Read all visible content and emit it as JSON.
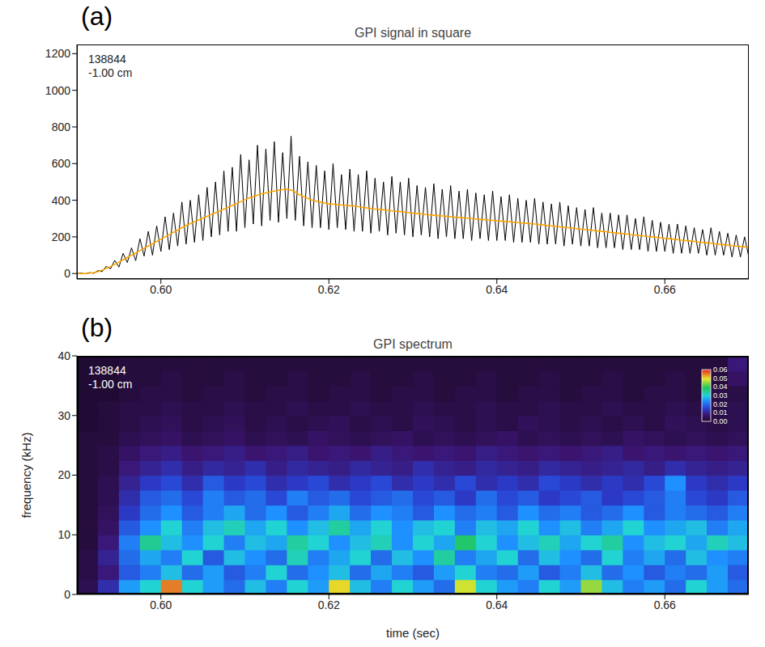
{
  "chart_data": [
    {
      "type": "line",
      "panel": "(a)",
      "title": "GPI signal in square",
      "annotations": [
        "138844",
        "-1.00 cm"
      ],
      "x": [
        0.59,
        0.5905,
        0.591,
        0.5915,
        0.592,
        0.5925,
        0.593,
        0.5935,
        0.594,
        0.5945,
        0.595,
        0.5955,
        0.596,
        0.5965,
        0.597,
        0.5975,
        0.598,
        0.5985,
        0.599,
        0.5995,
        0.6,
        0.6005,
        0.601,
        0.6015,
        0.602,
        0.6025,
        0.603,
        0.6035,
        0.604,
        0.6045,
        0.605,
        0.6055,
        0.606,
        0.6065,
        0.607,
        0.6075,
        0.608,
        0.6085,
        0.609,
        0.6095,
        0.61,
        0.6105,
        0.611,
        0.6115,
        0.612,
        0.6125,
        0.613,
        0.6135,
        0.614,
        0.6145,
        0.615,
        0.6155,
        0.616,
        0.6165,
        0.617,
        0.6175,
        0.618,
        0.6185,
        0.619,
        0.6195,
        0.62,
        0.6205,
        0.621,
        0.6215,
        0.622,
        0.6225,
        0.623,
        0.6235,
        0.624,
        0.6245,
        0.625,
        0.6255,
        0.626,
        0.6265,
        0.627,
        0.6275,
        0.628,
        0.6285,
        0.629,
        0.6295,
        0.63,
        0.6305,
        0.631,
        0.6315,
        0.632,
        0.6325,
        0.633,
        0.6335,
        0.634,
        0.6345,
        0.635,
        0.6355,
        0.636,
        0.6365,
        0.637,
        0.6375,
        0.638,
        0.6385,
        0.639,
        0.6395,
        0.64,
        0.6405,
        0.641,
        0.6415,
        0.642,
        0.6425,
        0.643,
        0.6435,
        0.644,
        0.6445,
        0.645,
        0.6455,
        0.646,
        0.6465,
        0.647,
        0.6475,
        0.648,
        0.6485,
        0.649,
        0.6495,
        0.65,
        0.6505,
        0.651,
        0.6515,
        0.652,
        0.6525,
        0.653,
        0.6535,
        0.654,
        0.6545,
        0.655,
        0.6555,
        0.656,
        0.6565,
        0.657,
        0.6575,
        0.658,
        0.6585,
        0.659,
        0.6595,
        0.66,
        0.6605,
        0.661,
        0.6615,
        0.662,
        0.6625,
        0.663,
        0.6635,
        0.664,
        0.6645,
        0.665,
        0.6655,
        0.666,
        0.6665,
        0.667,
        0.6675,
        0.668,
        0.6685,
        0.669,
        0.6695,
        0.67
      ],
      "series": [
        {
          "color": "#000000",
          "values": [
            0,
            2,
            -2,
            5,
            1,
            16,
            10,
            40,
            25,
            72,
            35,
            110,
            60,
            140,
            70,
            190,
            95,
            230,
            100,
            260,
            120,
            310,
            130,
            330,
            150,
            390,
            160,
            400,
            170,
            430,
            180,
            470,
            200,
            500,
            210,
            560,
            230,
            580,
            230,
            650,
            250,
            620,
            270,
            700,
            260,
            680,
            290,
            720,
            280,
            660,
            300,
            750,
            290,
            640,
            260,
            610,
            250,
            590,
            250,
            560,
            240,
            600,
            250,
            540,
            240,
            570,
            230,
            540,
            230,
            560,
            220,
            520,
            230,
            500,
            210,
            530,
            220,
            500,
            210,
            520,
            200,
            480,
            210,
            470,
            200,
            490,
            190,
            460,
            200,
            480,
            190,
            450,
            190,
            460,
            180,
            440,
            190,
            430,
            180,
            450,
            180,
            420,
            180,
            430,
            170,
            410,
            170,
            400,
            170,
            410,
            160,
            390,
            160,
            380,
            160,
            390,
            150,
            370,
            160,
            360,
            150,
            350,
            150,
            360,
            140,
            330,
            140,
            330,
            140,
            320,
            130,
            320,
            130,
            300,
            130,
            310,
            120,
            290,
            120,
            280,
            120,
            270,
            110,
            270,
            110,
            260,
            110,
            250,
            110,
            240,
            100,
            250,
            100,
            230,
            100,
            220,
            90,
            210,
            90,
            200,
            90
          ]
        },
        {
          "color": "#ffa500",
          "values": [
            0,
            0,
            0,
            2,
            5,
            10,
            18,
            28,
            38,
            50,
            62,
            75,
            88,
            100,
            112,
            125,
            138,
            150,
            162,
            175,
            188,
            200,
            212,
            225,
            237,
            250,
            262,
            272,
            282,
            292,
            302,
            312,
            322,
            332,
            342,
            352,
            362,
            372,
            382,
            392,
            402,
            412,
            420,
            428,
            435,
            440,
            445,
            450,
            455,
            458,
            460,
            455,
            445,
            430,
            420,
            410,
            400,
            395,
            390,
            385,
            380,
            378,
            376,
            374,
            372,
            370,
            368,
            365,
            362,
            358,
            355,
            352,
            350,
            348,
            345,
            342,
            340,
            338,
            335,
            333,
            330,
            328,
            325,
            322,
            320,
            318,
            316,
            314,
            312,
            310,
            308,
            306,
            304,
            302,
            300,
            298,
            296,
            294,
            292,
            290,
            288,
            286,
            284,
            282,
            280,
            278,
            276,
            274,
            272,
            270,
            268,
            265,
            262,
            260,
            258,
            255,
            252,
            250,
            248,
            245,
            242,
            240,
            238,
            235,
            232,
            230,
            228,
            225,
            222,
            220,
            218,
            215,
            212,
            210,
            208,
            205,
            202,
            200,
            198,
            195,
            192,
            190,
            188,
            185,
            182,
            180,
            178,
            175,
            172,
            170,
            168,
            165,
            162,
            160,
            158,
            155,
            152,
            150,
            148,
            145,
            142
          ]
        }
      ],
      "xlim": [
        0.59,
        0.67
      ],
      "xticks": [
        {
          "value": 0.6,
          "label": "0.60"
        },
        {
          "value": 0.62,
          "label": "0.62"
        },
        {
          "value": 0.64,
          "label": "0.64"
        },
        {
          "value": 0.66,
          "label": "0.66"
        }
      ],
      "ylim": [
        -30,
        1250
      ],
      "yticks": [
        0,
        200,
        400,
        600,
        800,
        1000,
        1200
      ]
    },
    {
      "type": "heatmap",
      "panel": "(b)",
      "title": "GPI spectrum",
      "annotations": [
        "138844",
        "-1.00 cm"
      ],
      "x_label": "time (sec)",
      "y_label": "frequency (kHz)",
      "x": [
        0.59125,
        0.59375,
        0.59625,
        0.59875,
        0.60125,
        0.60375,
        0.60625,
        0.60875,
        0.61125,
        0.61375,
        0.61625,
        0.61875,
        0.62125,
        0.62375,
        0.62625,
        0.62875,
        0.63125,
        0.63375,
        0.63625,
        0.63875,
        0.64125,
        0.64375,
        0.64625,
        0.64875,
        0.65125,
        0.65375,
        0.65625,
        0.65875,
        0.66125,
        0.66375,
        0.66625,
        0.66875
      ],
      "y": [
        1.25,
        3.75,
        6.25,
        8.75,
        11.25,
        13.75,
        16.25,
        18.75,
        21.25,
        23.75,
        26.25,
        28.75,
        31.25,
        33.75,
        36.25,
        38.75
      ],
      "cells": [
        [
          0.004,
          0.012,
          0.025,
          0.03,
          0.055,
          0.03,
          0.025,
          0.02,
          0.028,
          0.022,
          0.03,
          0.025,
          0.05,
          0.028,
          0.022,
          0.03,
          0.025,
          0.02,
          0.048,
          0.03,
          0.025,
          0.022,
          0.03,
          0.025,
          0.045,
          0.028,
          0.022,
          0.025,
          0.02,
          0.03,
          0.025,
          0.02
        ],
        [
          0.003,
          0.008,
          0.018,
          0.022,
          0.028,
          0.02,
          0.025,
          0.018,
          0.022,
          0.03,
          0.02,
          0.024,
          0.028,
          0.02,
          0.026,
          0.022,
          0.018,
          0.025,
          0.03,
          0.022,
          0.02,
          0.025,
          0.018,
          0.022,
          0.028,
          0.02,
          0.024,
          0.018,
          0.022,
          0.02,
          0.025,
          0.018
        ],
        [
          0.003,
          0.01,
          0.02,
          0.026,
          0.022,
          0.03,
          0.018,
          0.028,
          0.024,
          0.02,
          0.032,
          0.022,
          0.026,
          0.03,
          0.02,
          0.028,
          0.024,
          0.034,
          0.022,
          0.026,
          0.03,
          0.02,
          0.028,
          0.024,
          0.02,
          0.03,
          0.022,
          0.026,
          0.02,
          0.028,
          0.024,
          0.022
        ],
        [
          0.002,
          0.008,
          0.022,
          0.035,
          0.028,
          0.024,
          0.03,
          0.022,
          0.028,
          0.026,
          0.034,
          0.03,
          0.024,
          0.028,
          0.032,
          0.024,
          0.03,
          0.026,
          0.038,
          0.03,
          0.024,
          0.028,
          0.032,
          0.026,
          0.03,
          0.034,
          0.024,
          0.028,
          0.03,
          0.026,
          0.032,
          0.028
        ],
        [
          0.002,
          0.006,
          0.018,
          0.024,
          0.03,
          0.022,
          0.028,
          0.032,
          0.026,
          0.03,
          0.024,
          0.028,
          0.034,
          0.026,
          0.03,
          0.024,
          0.028,
          0.03,
          0.022,
          0.028,
          0.026,
          0.03,
          0.024,
          0.028,
          0.022,
          0.026,
          0.03,
          0.024,
          0.026,
          0.028,
          0.022,
          0.026
        ],
        [
          0.002,
          0.005,
          0.014,
          0.02,
          0.024,
          0.018,
          0.022,
          0.026,
          0.02,
          0.024,
          0.018,
          0.022,
          0.026,
          0.02,
          0.024,
          0.022,
          0.018,
          0.024,
          0.02,
          0.022,
          0.018,
          0.024,
          0.02,
          0.022,
          0.018,
          0.02,
          0.024,
          0.018,
          0.022,
          0.02,
          0.018,
          0.022
        ],
        [
          0.002,
          0.004,
          0.012,
          0.018,
          0.02,
          0.016,
          0.022,
          0.018,
          0.02,
          0.016,
          0.022,
          0.018,
          0.02,
          0.016,
          0.018,
          0.02,
          0.016,
          0.018,
          0.014,
          0.02,
          0.016,
          0.018,
          0.014,
          0.016,
          0.018,
          0.014,
          0.016,
          0.018,
          0.022,
          0.016,
          0.014,
          0.018
        ],
        [
          0.002,
          0.004,
          0.01,
          0.014,
          0.016,
          0.012,
          0.018,
          0.014,
          0.016,
          0.012,
          0.014,
          0.016,
          0.012,
          0.014,
          0.016,
          0.012,
          0.014,
          0.012,
          0.016,
          0.012,
          0.014,
          0.012,
          0.016,
          0.014,
          0.012,
          0.014,
          0.012,
          0.016,
          0.024,
          0.014,
          0.012,
          0.014
        ],
        [
          0.002,
          0.003,
          0.008,
          0.01,
          0.012,
          0.009,
          0.011,
          0.01,
          0.012,
          0.009,
          0.011,
          0.01,
          0.009,
          0.011,
          0.01,
          0.009,
          0.012,
          0.01,
          0.009,
          0.011,
          0.01,
          0.009,
          0.011,
          0.01,
          0.009,
          0.01,
          0.011,
          0.009,
          0.012,
          0.01,
          0.009,
          0.01
        ],
        [
          0.002,
          0.003,
          0.006,
          0.008,
          0.009,
          0.007,
          0.008,
          0.009,
          0.007,
          0.008,
          0.009,
          0.007,
          0.008,
          0.007,
          0.009,
          0.008,
          0.007,
          0.008,
          0.007,
          0.009,
          0.008,
          0.007,
          0.008,
          0.007,
          0.008,
          0.009,
          0.007,
          0.008,
          0.007,
          0.008,
          0.007,
          0.008
        ],
        [
          0.002,
          0.002,
          0.004,
          0.005,
          0.006,
          0.004,
          0.005,
          0.006,
          0.004,
          0.005,
          0.004,
          0.006,
          0.005,
          0.004,
          0.005,
          0.006,
          0.004,
          0.005,
          0.004,
          0.005,
          0.006,
          0.004,
          0.005,
          0.004,
          0.005,
          0.004,
          0.006,
          0.005,
          0.004,
          0.005,
          0.004,
          0.005
        ],
        [
          0.001,
          0.002,
          0.003,
          0.004,
          0.005,
          0.003,
          0.004,
          0.005,
          0.003,
          0.004,
          0.003,
          0.004,
          0.005,
          0.003,
          0.004,
          0.003,
          0.005,
          0.004,
          0.003,
          0.004,
          0.003,
          0.005,
          0.004,
          0.003,
          0.004,
          0.003,
          0.004,
          0.003,
          0.005,
          0.004,
          0.003,
          0.004
        ],
        [
          0.001,
          0.002,
          0.003,
          0.003,
          0.004,
          0.003,
          0.003,
          0.004,
          0.003,
          0.003,
          0.004,
          0.003,
          0.003,
          0.004,
          0.003,
          0.003,
          0.004,
          0.003,
          0.003,
          0.004,
          0.003,
          0.003,
          0.004,
          0.003,
          0.003,
          0.004,
          0.003,
          0.003,
          0.004,
          0.003,
          0.003,
          0.004
        ],
        [
          0.001,
          0.001,
          0.002,
          0.003,
          0.003,
          0.002,
          0.003,
          0.003,
          0.002,
          0.003,
          0.003,
          0.002,
          0.003,
          0.003,
          0.002,
          0.003,
          0.003,
          0.002,
          0.003,
          0.003,
          0.002,
          0.003,
          0.003,
          0.002,
          0.003,
          0.003,
          0.002,
          0.003,
          0.003,
          0.002,
          0.003,
          0.003
        ],
        [
          0.001,
          0.001,
          0.002,
          0.002,
          0.003,
          0.002,
          0.002,
          0.003,
          0.002,
          0.002,
          0.003,
          0.002,
          0.002,
          0.003,
          0.002,
          0.002,
          0.003,
          0.002,
          0.002,
          0.003,
          0.002,
          0.002,
          0.003,
          0.002,
          0.002,
          0.003,
          0.002,
          0.002,
          0.003,
          0.002,
          0.002,
          0.006
        ],
        [
          0.001,
          0.001,
          0.002,
          0.002,
          0.002,
          0.002,
          0.002,
          0.002,
          0.002,
          0.002,
          0.002,
          0.002,
          0.002,
          0.002,
          0.002,
          0.002,
          0.002,
          0.002,
          0.002,
          0.002,
          0.002,
          0.002,
          0.002,
          0.002,
          0.002,
          0.002,
          0.002,
          0.002,
          0.002,
          0.002,
          0.002,
          0.008
        ]
      ],
      "xlim": [
        0.59,
        0.67
      ],
      "xticks": [
        {
          "value": 0.6,
          "label": "0.60"
        },
        {
          "value": 0.62,
          "label": "0.62"
        },
        {
          "value": 0.64,
          "label": "0.64"
        },
        {
          "value": 0.66,
          "label": "0.66"
        }
      ],
      "ylim": [
        0,
        40
      ],
      "yticks": [
        0,
        10,
        20,
        30,
        40
      ],
      "color_range": [
        0,
        0.06
      ],
      "color_ticks": [
        {
          "value": 0,
          "label": "0.00"
        },
        {
          "value": 0.01,
          "label": "0.01"
        },
        {
          "value": 0.02,
          "label": "0.02"
        },
        {
          "value": 0.03,
          "label": "0.03"
        },
        {
          "value": 0.04,
          "label": "0.04"
        },
        {
          "value": 0.05,
          "label": "0.05"
        },
        {
          "value": 0.06,
          "label": "0.06"
        }
      ]
    }
  ]
}
